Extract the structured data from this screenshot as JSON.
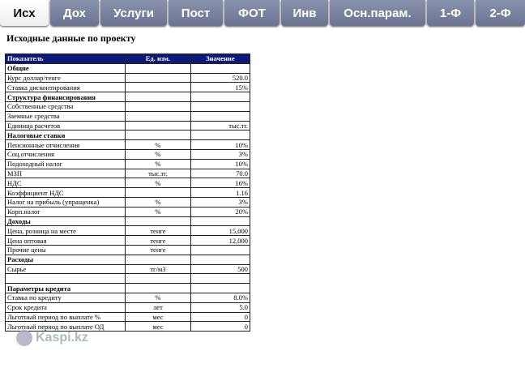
{
  "tabs": [
    "Исх",
    "Дох",
    "Услуги",
    "Пост",
    "ФОТ",
    "Инв",
    "Осн.парам.",
    "1-Ф",
    "2-Ф"
  ],
  "active_tab": "Исх",
  "title": "Исходные данные по проекту",
  "table": {
    "headers": [
      "Показатель",
      "Ед. изм.",
      "Значение"
    ],
    "rows": [
      {
        "name": "Общие",
        "unit": "",
        "value": "",
        "section": true
      },
      {
        "name": "Курс доллар/тенге",
        "unit": "",
        "value": "520.0"
      },
      {
        "name": "Ставка дисконтирования",
        "unit": "",
        "value": "15%"
      },
      {
        "name": "Структура финансирования",
        "unit": "",
        "value": "",
        "section": true
      },
      {
        "name": "Собственные средства",
        "unit": "",
        "value": ""
      },
      {
        "name": "Заемные средства",
        "unit": "",
        "value": ""
      },
      {
        "name": "Единица расчетов",
        "unit": "",
        "value": "тыс.тг."
      },
      {
        "name": "Налоговые ставки",
        "unit": "",
        "value": "",
        "section": true
      },
      {
        "name": "Пенсионные отчисления",
        "unit": "%",
        "value": "10%"
      },
      {
        "name": "Соц.отчисления",
        "unit": "%",
        "value": "3%"
      },
      {
        "name": "Подоходный налог",
        "unit": "%",
        "value": "10%"
      },
      {
        "name": "МЗП",
        "unit": "тыс.тг.",
        "value": "70.0"
      },
      {
        "name": "НДС",
        "unit": "%",
        "value": "16%"
      },
      {
        "name": "Коэффициент НДС",
        "unit": "",
        "value": "1.16"
      },
      {
        "name": "Налог на прибыль (упращенка)",
        "unit": "%",
        "value": "3%"
      },
      {
        "name": "Корп.налог",
        "unit": "%",
        "value": "20%"
      },
      {
        "name": "Доходы",
        "unit": "",
        "value": "",
        "section": true
      },
      {
        "name": "Цена, розница на месте",
        "unit": "тенге",
        "value": "15,000"
      },
      {
        "name": "Цена оптовая",
        "unit": "тенге",
        "value": "12,000"
      },
      {
        "name": "Прочие цены",
        "unit": "тенге",
        "value": ""
      },
      {
        "name": "Расходы",
        "unit": "",
        "value": "",
        "section": true
      },
      {
        "name": "Сырье",
        "unit": "тг/м3",
        "value": "500"
      },
      {
        "name": "",
        "unit": "",
        "value": ""
      },
      {
        "name": "Параметры кредита",
        "unit": "",
        "value": "",
        "section": true
      },
      {
        "name": "Ставка по кредиту",
        "unit": "%",
        "value": "8.0%"
      },
      {
        "name": "Срок кредита",
        "unit": "лет",
        "value": "5.0"
      },
      {
        "name": "Льготный период по выплате %",
        "unit": "мес",
        "value": "0"
      },
      {
        "name": "Льготный период по выплате ОД",
        "unit": "мес",
        "value": "0"
      }
    ]
  },
  "watermark": "Kaspi.kz"
}
